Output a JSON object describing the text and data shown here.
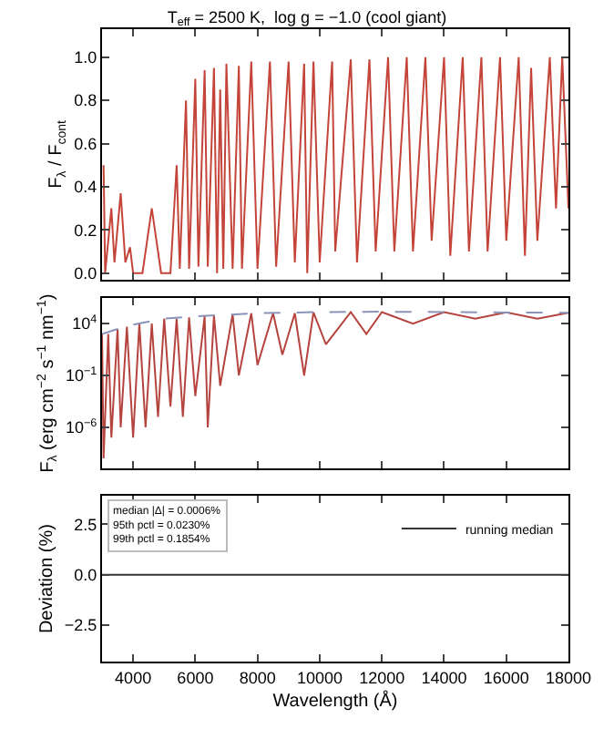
{
  "chart_data": [
    {
      "type": "line",
      "title": "T$_{eff}$ = 2500 K,  log g = −1.0 (cool giant)",
      "ylabel": "F$_{λ}$ / F$_{cont}$",
      "xlim": [
        3000,
        18000
      ],
      "xticks": [
        4000,
        6000,
        8000,
        10000,
        12000,
        14000,
        16000,
        18000
      ],
      "ylim": [
        -0.03,
        1.13
      ],
      "yticks": [
        {
          "value": 0,
          "label": "0.0"
        },
        0.2,
        0.4,
        0.6,
        0.8,
        {
          "value": 1,
          "label": "1.0"
        }
      ],
      "tick_labels": "y",
      "series": [
        {
          "color": "#c4443a",
          "x": [
            3050,
            3100,
            3300,
            3400,
            3600,
            3750,
            3900,
            4000,
            4300,
            4600,
            4900,
            5200,
            5400,
            5500,
            5700,
            5800,
            6000,
            6100,
            6300,
            6400,
            6600,
            6700,
            6800,
            6900,
            7000,
            7200,
            7400,
            7500,
            7800,
            8000,
            8400,
            8600,
            9000,
            9200,
            9500,
            9600,
            9800,
            10000,
            10400,
            10500,
            11000,
            11200,
            11600,
            11800,
            12200,
            12400,
            12800,
            13000,
            13400,
            13600,
            14000,
            14200,
            14600,
            14800,
            15200,
            15400,
            15800,
            16000,
            16400,
            16600,
            16800,
            17000,
            17400,
            17600,
            17800,
            18000
          ],
          "values": [
            0.5,
            0.0,
            0.3,
            0.05,
            0.37,
            0.05,
            0.12,
            0.0,
            0.0,
            0.3,
            0.0,
            0.0,
            0.5,
            0.02,
            0.8,
            0.02,
            0.9,
            0.03,
            0.94,
            0.03,
            0.95,
            0.0,
            0.85,
            0.02,
            0.97,
            0.02,
            0.96,
            0.02,
            0.98,
            0.02,
            0.98,
            0.03,
            0.98,
            0.05,
            0.97,
            0.0,
            0.98,
            0.05,
            0.98,
            0.1,
            0.99,
            0.05,
            0.99,
            0.1,
            1.0,
            0.1,
            1.0,
            0.1,
            1.0,
            0.15,
            1.0,
            0.08,
            1.0,
            0.1,
            1.0,
            0.1,
            1.0,
            0.15,
            1.0,
            0.08,
            0.95,
            0.15,
            1.0,
            0.3,
            1.0,
            0.3
          ]
        }
      ]
    },
    {
      "type": "line",
      "ylabel": "F$_{λ}$ (erg cm$^{−2}$ s$^{−1}$ nm$^{−1}$)",
      "xlim": [
        3000,
        18000
      ],
      "xticks": [
        4000,
        6000,
        8000,
        10000,
        12000,
        14000,
        16000,
        18000
      ],
      "log": "y",
      "ylim": [
        1e-10,
        3000000
      ],
      "yticks": [
        {
          "value": 1e-06,
          "label": "10$^{−6}$"
        },
        {
          "value": 0.1,
          "label": "10$^{−1}$"
        },
        {
          "value": 10000,
          "label": "10$^{4}$"
        }
      ],
      "tick_labels": "y",
      "series": [
        {
          "color": "#b5443e",
          "x": [
            3000,
            3050,
            3200,
            3300,
            3500,
            3600,
            3800,
            4000,
            4200,
            4400,
            4600,
            4800,
            5000,
            5200,
            5400,
            5600,
            5800,
            6000,
            6300,
            6400,
            6600,
            6800,
            7200,
            7400,
            7800,
            8000,
            8500,
            8800,
            9200,
            9500,
            9800,
            10200,
            11000,
            11500,
            12000,
            13000,
            14000,
            15000,
            16000,
            17000,
            18000
          ],
          "values": [
            1000,
            1e-09,
            1000,
            1e-07,
            3000,
            1e-06,
            5000,
            1e-07,
            10000,
            1e-06,
            10000,
            1e-05,
            30000,
            0.0001,
            30000,
            1e-05,
            40000,
            0.001,
            50000,
            1e-06,
            60000,
            0.01,
            80000,
            0.1,
            100000,
            1,
            100000,
            10,
            100000,
            0.1,
            120000,
            100,
            130000,
            1000,
            130000,
            10000,
            130000,
            30000,
            120000,
            30000,
            110000
          ]
        },
        {
          "color": "#8a93b8",
          "line_style": "dashed",
          "x": [
            3000,
            3500,
            4000,
            5000,
            6000,
            8000,
            10000,
            12000,
            14000,
            18000
          ],
          "values": [
            1000,
            3000,
            8000,
            30000,
            50000,
            100000,
            130000,
            140000,
            130000,
            110000
          ]
        }
      ]
    },
    {
      "type": "line",
      "ylabel": "Deviation (%)",
      "xlabel": "Wavelength (Å)",
      "xlim": [
        3000,
        18000
      ],
      "xticks": [
        4000,
        6000,
        8000,
        10000,
        12000,
        14000,
        16000,
        18000
      ],
      "ylim": [
        -4.3,
        3.9
      ],
      "yticks": [
        {
          "value": -2.5,
          "label": "−2.5"
        },
        {
          "value": 0,
          "label": "0.0"
        },
        2.5
      ],
      "legend": "top right",
      "annotations": [
        "median |Δ| = 0.0006%",
        "95th pctl = 0.0230%",
        "99th pctl = 0.1854%"
      ],
      "series": [
        {
          "name": "running median",
          "color": "#333333",
          "x": [
            3000,
            18000
          ],
          "values": [
            0,
            0
          ]
        }
      ]
    }
  ]
}
